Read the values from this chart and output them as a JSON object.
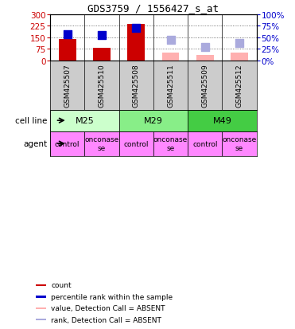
{
  "title": "GDS3759 / 1556427_s_at",
  "samples": [
    "GSM425507",
    "GSM425510",
    "GSM425508",
    "GSM425511",
    "GSM425509",
    "GSM425512"
  ],
  "cell_lines": [
    {
      "label": "M25",
      "cols": [
        0,
        1
      ]
    },
    {
      "label": "M29",
      "cols": [
        2,
        3
      ]
    },
    {
      "label": "M49",
      "cols": [
        4,
        5
      ]
    }
  ],
  "cell_line_colors": [
    "#CCFFCC",
    "#88EE88",
    "#44CC44"
  ],
  "agents": [
    "control",
    "onconase\nse",
    "control",
    "onconase\nse",
    "control",
    "onconase\nse"
  ],
  "agent_color": "#FF88FF",
  "count_values": [
    137,
    82,
    238,
    null,
    null,
    null
  ],
  "count_absent_values": [
    null,
    null,
    null,
    50,
    35,
    52
  ],
  "rank_pct_values": [
    57,
    54,
    70,
    null,
    null,
    null
  ],
  "rank_pct_absent_values": [
    null,
    null,
    null,
    44,
    28,
    37
  ],
  "ylim_left": [
    0,
    300
  ],
  "ylim_right": [
    0,
    100
  ],
  "left_ticks": [
    0,
    75,
    150,
    225,
    300
  ],
  "right_ticks": [
    0,
    25,
    50,
    75,
    100
  ],
  "count_color": "#CC0000",
  "count_absent_color": "#FFB0B0",
  "rank_color": "#0000CC",
  "rank_absent_color": "#AAAADD",
  "bar_width": 0.5,
  "marker_size": 50,
  "sample_bg": "#CCCCCC",
  "grid_linestyle": "dotted",
  "grid_color": "#555555"
}
